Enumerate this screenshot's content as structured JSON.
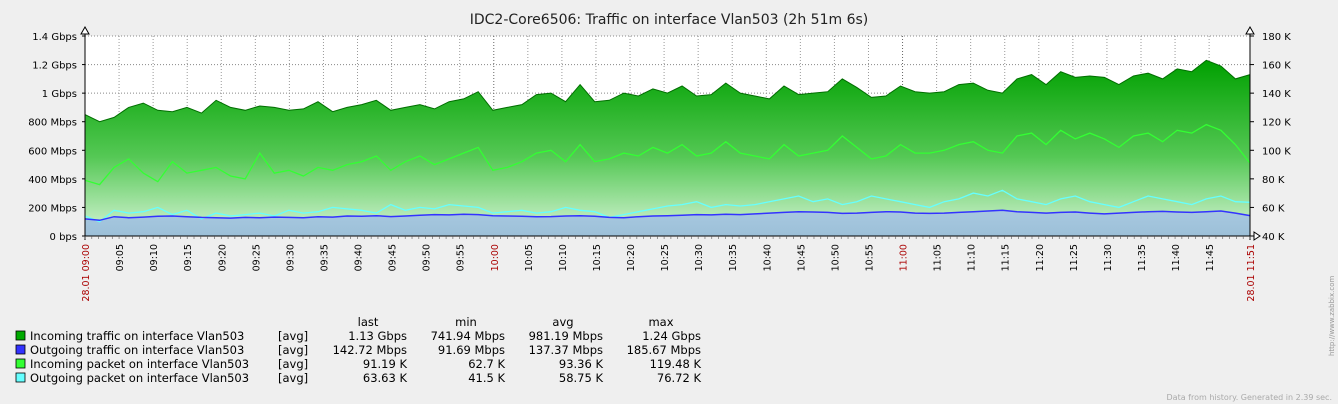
{
  "chart_data": {
    "type": "area",
    "title": "IDC2-Core6506: Traffic on interface Vlan503 (2h 51m 6s)",
    "y_left": {
      "ticks": [
        "0 bps",
        "200 Mbps",
        "400 Mbps",
        "600 Mbps",
        "800 Mbps",
        "1 Gbps",
        "1.2 Gbps",
        "1.4 Gbps"
      ],
      "range_mbps": [
        0,
        1400
      ]
    },
    "y_right": {
      "ticks": [
        "40 K",
        "60 K",
        "80 K",
        "100 K",
        "120 K",
        "140 K",
        "160 K",
        "180 K"
      ],
      "range_k": [
        40,
        180
      ]
    },
    "x": {
      "start_label": "28.01 09:00",
      "end_label": "28.01 11:51",
      "start_min": 540,
      "end_min": 711,
      "ticks": [
        "09:05",
        "09:10",
        "09:15",
        "09:20",
        "09:25",
        "09:30",
        "09:35",
        "09:40",
        "09:45",
        "09:50",
        "09:55",
        "10:00",
        "10:05",
        "10:10",
        "10:15",
        "10:20",
        "10:25",
        "10:30",
        "10:35",
        "10:40",
        "10:45",
        "10:50",
        "10:55",
        "11:00",
        "11:05",
        "11:10",
        "11:15",
        "11:20",
        "11:25",
        "11:30",
        "11:35",
        "11:40",
        "11:45"
      ],
      "hour_ticks": [
        "10:00",
        "11:00"
      ]
    },
    "legend_header": {
      "last": "last",
      "min": "min",
      "avg": "avg",
      "max": "max"
    },
    "series": [
      {
        "name": "Incoming traffic on interface Vlan503",
        "func": "[avg]",
        "last": "1.13 Gbps",
        "min": "741.94 Mbps",
        "avg": "981.19 Mbps",
        "max": "1.24 Gbps",
        "color": "#00aa00",
        "axis": "left",
        "unit": "Mbps",
        "values": [
          850,
          800,
          830,
          900,
          930,
          880,
          870,
          900,
          860,
          950,
          900,
          880,
          910,
          900,
          880,
          890,
          940,
          870,
          900,
          920,
          950,
          880,
          900,
          920,
          890,
          940,
          960,
          1010,
          880,
          900,
          920,
          990,
          1000,
          940,
          1060,
          940,
          950,
          1000,
          980,
          1030,
          1000,
          1050,
          980,
          990,
          1070,
          1000,
          980,
          960,
          1050,
          990,
          1000,
          1010,
          1100,
          1040,
          970,
          980,
          1050,
          1010,
          1000,
          1010,
          1060,
          1070,
          1020,
          1000,
          1100,
          1130,
          1060,
          1150,
          1110,
          1120,
          1110,
          1060,
          1120,
          1140,
          1100,
          1170,
          1150,
          1230,
          1190,
          1100,
          1130
        ]
      },
      {
        "name": "Outgoing traffic on interface Vlan503",
        "func": "[avg]",
        "last": "142.72 Mbps",
        "min": "91.69 Mbps",
        "avg": "137.37 Mbps",
        "max": "185.67 Mbps",
        "color": "#3333ff",
        "axis": "left",
        "unit": "Mbps",
        "values": [
          120,
          110,
          135,
          128,
          132,
          138,
          140,
          135,
          130,
          128,
          125,
          130,
          128,
          132,
          130,
          128,
          135,
          132,
          140,
          138,
          142,
          136,
          140,
          145,
          150,
          148,
          152,
          150,
          142,
          140,
          138,
          135,
          136,
          140,
          142,
          138,
          130,
          128,
          135,
          140,
          142,
          145,
          150,
          148,
          152,
          150,
          155,
          160,
          165,
          170,
          168,
          165,
          158,
          160,
          165,
          170,
          168,
          160,
          158,
          160,
          165,
          170,
          175,
          180,
          170,
          165,
          160,
          165,
          168,
          160,
          155,
          160,
          165,
          170,
          172,
          168,
          165,
          170,
          175,
          160,
          143
        ]
      },
      {
        "name": "Incoming packet on interface Vlan503",
        "func": "[avg]",
        "last": "91.19 K",
        "min": "62.7 K",
        "avg": "93.36 K",
        "max": "119.48 K",
        "color": "#33ff33",
        "axis": "right",
        "unit": "K",
        "values": [
          79,
          76,
          88,
          94,
          84,
          78,
          92,
          84,
          86,
          88,
          82,
          80,
          98,
          84,
          86,
          82,
          88,
          86,
          90,
          92,
          96,
          86,
          92,
          96,
          90,
          94,
          98,
          102,
          86,
          88,
          92,
          98,
          100,
          92,
          104,
          92,
          94,
          98,
          96,
          102,
          98,
          104,
          96,
          98,
          106,
          98,
          96,
          94,
          104,
          96,
          98,
          100,
          110,
          102,
          94,
          96,
          104,
          98,
          98,
          100,
          104,
          106,
          100,
          98,
          110,
          112,
          104,
          114,
          108,
          112,
          108,
          102,
          110,
          112,
          106,
          114,
          112,
          118,
          114,
          104,
          91
        ]
      },
      {
        "name": "Outgoing packet on interface Vlan503",
        "func": "[avg]",
        "last": "63.63 K",
        "min": "41.5 K",
        "avg": "58.75 K",
        "max": "76.72 K",
        "color": "#66ffff",
        "axis": "right",
        "unit": "K",
        "values": [
          54,
          50,
          58,
          56,
          57,
          60,
          55,
          58,
          52,
          56,
          54,
          55,
          56,
          54,
          58,
          56,
          57,
          60,
          59,
          58,
          56,
          62,
          58,
          60,
          59,
          62,
          61,
          60,
          56,
          57,
          58,
          56,
          57,
          60,
          58,
          57,
          53,
          55,
          57,
          59,
          61,
          62,
          64,
          60,
          62,
          61,
          62,
          64,
          66,
          68,
          64,
          66,
          62,
          64,
          68,
          66,
          64,
          62,
          60,
          64,
          66,
          70,
          68,
          72,
          66,
          64,
          62,
          66,
          68,
          64,
          62,
          60,
          64,
          68,
          66,
          64,
          62,
          66,
          68,
          64,
          63.6
        ]
      }
    ]
  },
  "footer": {
    "text": "Data from history. Generated in 2.39 sec."
  },
  "watermark": "http://www.zabbix.com"
}
